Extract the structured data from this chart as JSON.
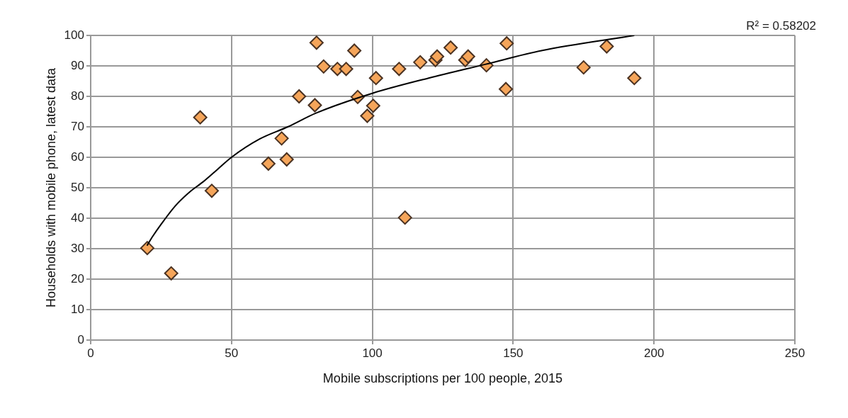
{
  "chart_data": {
    "type": "scatter",
    "xlabel": "Mobile subscriptions per 100 people, 2015",
    "ylabel": "Households with mobile phone, latest data",
    "xlim": [
      0,
      250
    ],
    "xticks": [
      0,
      50,
      100,
      150,
      200,
      250
    ],
    "ylim": [
      0,
      100
    ],
    "yticks": [
      0,
      10,
      20,
      30,
      40,
      50,
      60,
      70,
      80,
      90,
      100
    ],
    "grid": true,
    "legend": false,
    "annotations": [
      "R² = 0.58202"
    ],
    "series": [
      {
        "marker": "diamond",
        "color": "#f5a55a",
        "x": [
          20.1,
          28.6,
          38.9,
          43.0,
          63.1,
          67.8,
          69.6,
          74.0,
          79.6,
          80.2,
          82.7,
          87.6,
          90.7,
          93.6,
          94.8,
          98.2,
          101.3,
          100.3,
          109.5,
          111.6,
          117.0,
          122.4,
          123.0,
          127.8,
          133.0,
          134.0,
          140.5,
          147.4,
          147.7,
          175.0,
          183.2,
          193.0
        ],
        "values": [
          30.2,
          21.9,
          73.1,
          49.0,
          57.9,
          66.2,
          59.3,
          80.0,
          77.1,
          97.6,
          89.8,
          89.0,
          89.0,
          95.0,
          79.8,
          73.6,
          86.0,
          76.9,
          89.0,
          40.2,
          91.2,
          91.9,
          93.1,
          96.0,
          91.9,
          93.1,
          90.2,
          82.4,
          97.4,
          89.5,
          96.4,
          86.0
        ]
      },
      {
        "type": "line",
        "marker": "none",
        "color": "#000000",
        "x": [
          20,
          22,
          25,
          30,
          35,
          40,
          45,
          50,
          60,
          70,
          80,
          100,
          120,
          140,
          160,
          193
        ],
        "values": [
          31,
          34,
          38,
          44,
          48.5,
          52,
          56,
          60,
          66,
          70,
          74.5,
          81,
          86,
          90.5,
          95,
          100
        ]
      }
    ]
  }
}
